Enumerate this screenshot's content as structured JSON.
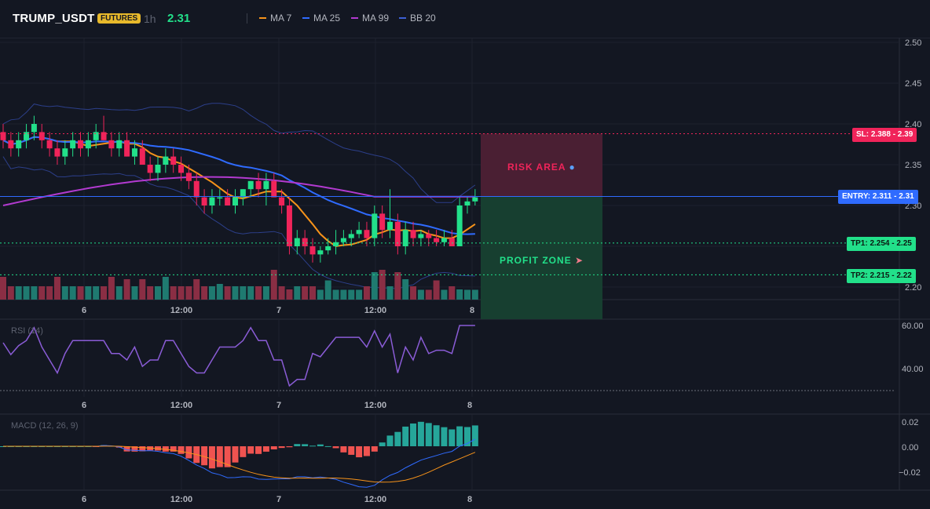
{
  "header": {
    "symbol": "TRUMP_USDT",
    "market_badge": "FUTURES",
    "timeframe": "1h",
    "last_price": "2.31",
    "legend": [
      {
        "label": "MA 7",
        "color": "#f7931a"
      },
      {
        "label": "MA 25",
        "color": "#2f6bff"
      },
      {
        "label": "MA 99",
        "color": "#b23ad0"
      },
      {
        "label": "BB 20",
        "color": "#3d5fd6"
      }
    ]
  },
  "colors": {
    "background": "#131722",
    "up": "#22e08a",
    "down": "#f0245a",
    "volume_up": "#1f7a70",
    "volume_down": "#8a2e44",
    "risk_zone": "#4a1f33",
    "profit_zone": "#173f30",
    "entry_line": "#2f6bff",
    "sl": "#f0245a",
    "tp": "#22e08a"
  },
  "price_pane": {
    "y_ticks": [
      "2.50",
      "2.45",
      "2.40",
      "2.35",
      "2.30",
      "2.20"
    ],
    "x_ticks": [
      "6",
      "12:00",
      "7",
      "12:00",
      "8"
    ],
    "levels": {
      "sl": {
        "label": "SL: 2.388 - 2.39",
        "value": 2.388
      },
      "entry": {
        "label": "ENTRY: 2.311 - 2.31",
        "value": 2.311
      },
      "tp1": {
        "label": "TP1: 2.254 - 2.25",
        "value": 2.254
      },
      "tp2": {
        "label": "TP2: 2.215 - 2.22",
        "value": 2.215
      }
    },
    "risk_label": "RISK AREA",
    "profit_label": "PROFIT ZONE"
  },
  "rsi_pane": {
    "title": "RSI (14)",
    "y_ticks": [
      "60.00",
      "40.00"
    ],
    "x_ticks": [
      "6",
      "12:00",
      "7",
      "12:00",
      "8"
    ]
  },
  "macd_pane": {
    "title": "MACD (12, 26, 9)",
    "y_ticks": [
      "0.02",
      "0.00",
      "−0.02"
    ],
    "x_ticks": [
      "6",
      "12:00",
      "7",
      "12:00",
      "8"
    ]
  },
  "chart_data": {
    "type": "candlestick",
    "ylim": [
      2.18,
      2.5
    ],
    "candles_ohlc": [
      [
        2.39,
        2.4,
        2.37,
        2.38
      ],
      [
        2.38,
        2.39,
        2.36,
        2.37
      ],
      [
        2.37,
        2.39,
        2.36,
        2.38
      ],
      [
        2.38,
        2.4,
        2.37,
        2.39
      ],
      [
        2.39,
        2.41,
        2.38,
        2.4
      ],
      [
        2.39,
        2.4,
        2.37,
        2.38
      ],
      [
        2.38,
        2.39,
        2.36,
        2.37
      ],
      [
        2.37,
        2.38,
        2.35,
        2.36
      ],
      [
        2.36,
        2.38,
        2.35,
        2.37
      ],
      [
        2.37,
        2.39,
        2.36,
        2.38
      ],
      [
        2.38,
        2.39,
        2.36,
        2.37
      ],
      [
        2.37,
        2.39,
        2.36,
        2.38
      ],
      [
        2.38,
        2.4,
        2.37,
        2.39
      ],
      [
        2.39,
        2.41,
        2.38,
        2.38
      ],
      [
        2.38,
        2.39,
        2.36,
        2.37
      ],
      [
        2.37,
        2.39,
        2.36,
        2.38
      ],
      [
        2.38,
        2.39,
        2.36,
        2.36
      ],
      [
        2.36,
        2.38,
        2.35,
        2.37
      ],
      [
        2.37,
        2.38,
        2.35,
        2.35
      ],
      [
        2.35,
        2.36,
        2.33,
        2.34
      ],
      [
        2.34,
        2.36,
        2.33,
        2.35
      ],
      [
        2.35,
        2.37,
        2.34,
        2.36
      ],
      [
        2.36,
        2.37,
        2.34,
        2.35
      ],
      [
        2.35,
        2.36,
        2.33,
        2.34
      ],
      [
        2.34,
        2.35,
        2.32,
        2.33
      ],
      [
        2.33,
        2.34,
        2.3,
        2.31
      ],
      [
        2.31,
        2.32,
        2.29,
        2.3
      ],
      [
        2.3,
        2.32,
        2.29,
        2.31
      ],
      [
        2.31,
        2.32,
        2.3,
        2.31
      ],
      [
        2.31,
        2.32,
        2.3,
        2.3
      ],
      [
        2.3,
        2.32,
        2.29,
        2.31
      ],
      [
        2.31,
        2.32,
        2.3,
        2.32
      ],
      [
        2.32,
        2.33,
        2.31,
        2.33
      ],
      [
        2.33,
        2.34,
        2.31,
        2.32
      ],
      [
        2.32,
        2.34,
        2.3,
        2.33
      ],
      [
        2.33,
        2.34,
        2.31,
        2.31
      ],
      [
        2.31,
        2.32,
        2.29,
        2.3
      ],
      [
        2.3,
        2.31,
        2.24,
        2.25
      ],
      [
        2.25,
        2.27,
        2.24,
        2.26
      ],
      [
        2.26,
        2.27,
        2.24,
        2.25
      ],
      [
        2.25,
        2.26,
        2.23,
        2.24
      ],
      [
        2.24,
        2.25,
        2.23,
        2.245
      ],
      [
        2.245,
        2.26,
        2.24,
        2.25
      ],
      [
        2.25,
        2.27,
        2.24,
        2.255
      ],
      [
        2.255,
        2.27,
        2.25,
        2.26
      ],
      [
        2.26,
        2.27,
        2.25,
        2.265
      ],
      [
        2.265,
        2.28,
        2.26,
        2.27
      ],
      [
        2.27,
        2.28,
        2.25,
        2.26
      ],
      [
        2.26,
        2.3,
        2.25,
        2.29
      ],
      [
        2.29,
        2.3,
        2.26,
        2.27
      ],
      [
        2.27,
        2.32,
        2.26,
        2.28
      ],
      [
        2.28,
        2.29,
        2.24,
        2.25
      ],
      [
        2.25,
        2.28,
        2.24,
        2.27
      ],
      [
        2.27,
        2.28,
        2.25,
        2.26
      ],
      [
        2.26,
        2.27,
        2.25,
        2.265
      ],
      [
        2.265,
        2.27,
        2.25,
        2.26
      ],
      [
        2.26,
        2.27,
        2.25,
        2.255
      ],
      [
        2.255,
        2.27,
        2.25,
        2.26
      ],
      [
        2.26,
        2.27,
        2.25,
        2.25
      ],
      [
        2.25,
        2.31,
        2.25,
        2.3
      ],
      [
        2.3,
        2.31,
        2.29,
        2.305
      ],
      [
        2.305,
        2.32,
        2.3,
        2.31
      ]
    ]
  }
}
